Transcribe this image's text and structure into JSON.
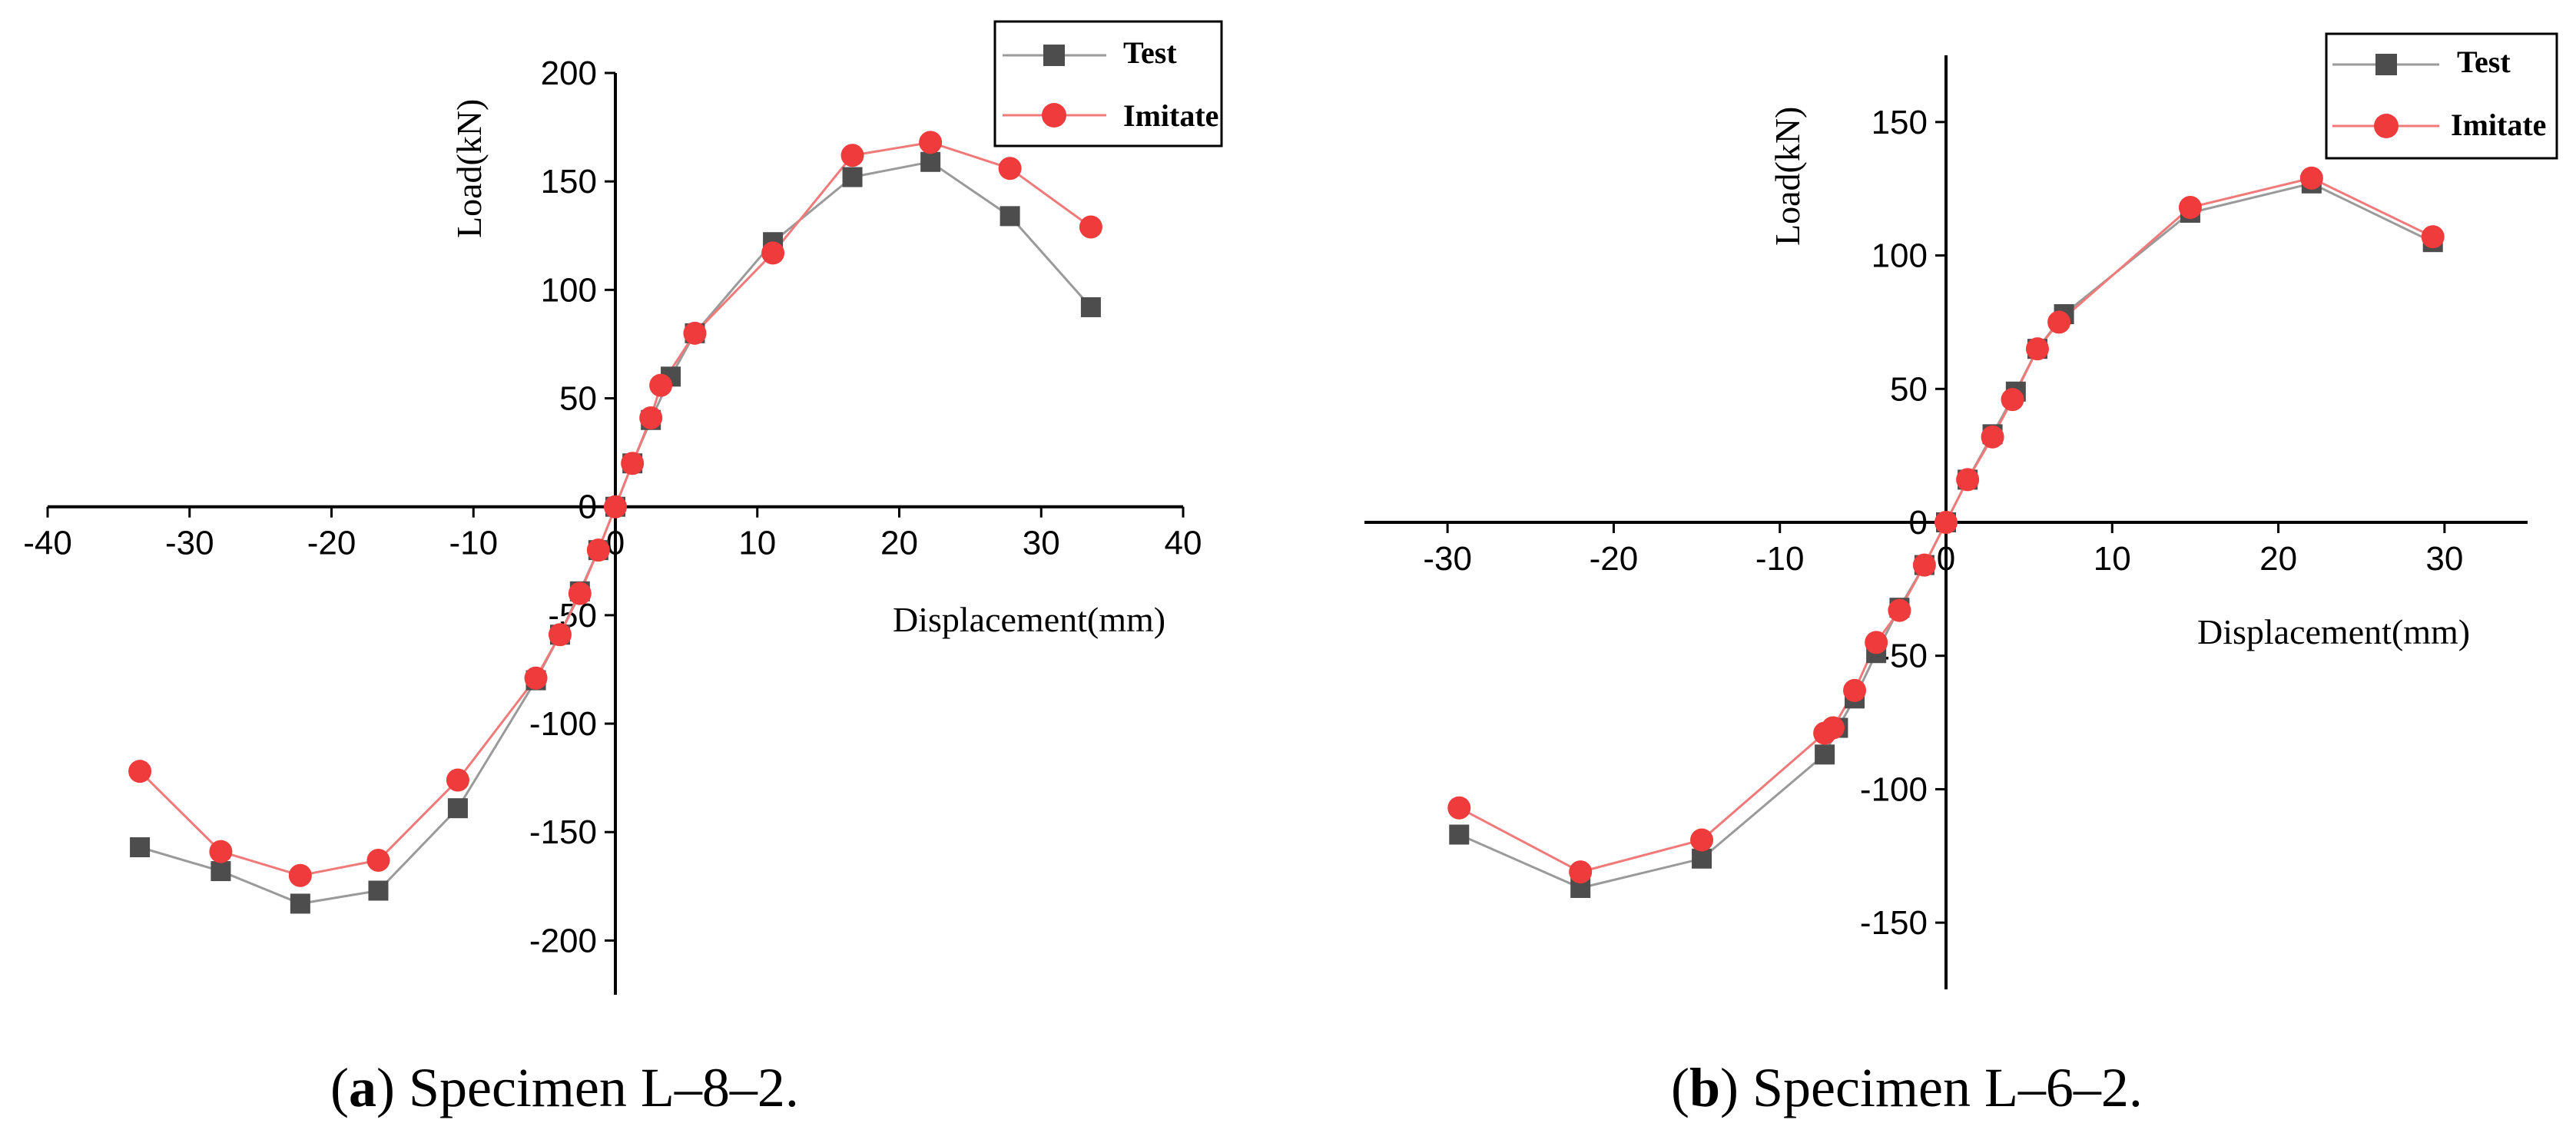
{
  "chart_data": [
    {
      "type": "line",
      "title": "",
      "xlabel": "Displacement(mm)",
      "ylabel": "Load(kN)",
      "xlim": [
        -40,
        40
      ],
      "ylim": [
        -225,
        200
      ],
      "xticks": [
        -40,
        -30,
        -20,
        -10,
        0,
        10,
        20,
        30,
        40
      ],
      "yticks": [
        -200,
        -150,
        -100,
        -50,
        0,
        50,
        100,
        150,
        200
      ],
      "legend": "top-right",
      "caption_label": "a",
      "caption_text": " Specimen L–8–2.",
      "series": [
        {
          "name": "Test",
          "color": "#4d4d4d",
          "line_color": "#9a9a9a",
          "marker": "square",
          "points": [
            [
              -33.5,
              -157
            ],
            [
              -27.8,
              -168
            ],
            [
              -22.2,
              -183
            ],
            [
              -16.7,
              -177
            ],
            [
              -11.1,
              -139
            ],
            [
              -5.6,
              -80
            ],
            [
              -3.9,
              -59
            ],
            [
              -2.5,
              -39
            ],
            [
              -1.2,
              -20
            ],
            [
              0,
              0
            ],
            [
              1.2,
              20
            ],
            [
              2.5,
              40
            ],
            [
              3.9,
              60
            ],
            [
              5.6,
              80
            ],
            [
              11.1,
              122
            ],
            [
              16.7,
              152
            ],
            [
              22.2,
              159
            ],
            [
              27.8,
              134
            ],
            [
              33.5,
              92
            ]
          ]
        },
        {
          "name": "Imitate",
          "color": "#ef3b3b",
          "line_color": "#f07a7a",
          "marker": "circle",
          "points": [
            [
              -33.5,
              -122
            ],
            [
              -27.8,
              -159
            ],
            [
              -22.2,
              -170
            ],
            [
              -16.7,
              -163
            ],
            [
              -11.1,
              -126
            ],
            [
              -5.6,
              -79
            ],
            [
              -3.9,
              -59
            ],
            [
              -2.5,
              -40
            ],
            [
              -1.2,
              -20
            ],
            [
              0,
              0
            ],
            [
              1.2,
              20
            ],
            [
              2.5,
              41
            ],
            [
              3.2,
              56
            ],
            [
              5.6,
              80
            ],
            [
              11.1,
              117
            ],
            [
              16.7,
              162
            ],
            [
              22.2,
              168
            ],
            [
              27.8,
              156
            ],
            [
              33.5,
              129
            ]
          ]
        }
      ]
    },
    {
      "type": "line",
      "title": "",
      "xlabel": "Displacement(mm)",
      "ylabel": "Load(kN)",
      "xlim": [
        -35,
        35
      ],
      "ylim": [
        -175,
        175
      ],
      "xticks": [
        -30,
        -20,
        -10,
        0,
        10,
        20,
        30
      ],
      "yticks": [
        -150,
        -100,
        -50,
        0,
        50,
        100,
        150
      ],
      "legend": "top-right",
      "caption_label": "b",
      "caption_text": " Specimen L–6–2.",
      "series": [
        {
          "name": "Test",
          "color": "#4d4d4d",
          "line_color": "#9a9a9a",
          "marker": "square",
          "points": [
            [
              -29.3,
              -117
            ],
            [
              -22,
              -137
            ],
            [
              -14.7,
              -126
            ],
            [
              -7.3,
              -87
            ],
            [
              -6.5,
              -77
            ],
            [
              -5.5,
              -66
            ],
            [
              -4.2,
              -49
            ],
            [
              -2.8,
              -32
            ],
            [
              -1.3,
              -16
            ],
            [
              0,
              0
            ],
            [
              1.3,
              16
            ],
            [
              2.8,
              33
            ],
            [
              4.2,
              49
            ],
            [
              5.5,
              65
            ],
            [
              7.1,
              78
            ],
            [
              14.7,
              116
            ],
            [
              22,
              127
            ],
            [
              29.3,
              105
            ]
          ]
        },
        {
          "name": "Imitate",
          "color": "#ef3b3b",
          "line_color": "#f07a7a",
          "marker": "circle",
          "points": [
            [
              -29.3,
              -107
            ],
            [
              -22,
              -131
            ],
            [
              -14.7,
              -119
            ],
            [
              -7.3,
              -79
            ],
            [
              -6.8,
              -77
            ],
            [
              -5.5,
              -63
            ],
            [
              -4.2,
              -45
            ],
            [
              -2.8,
              -33
            ],
            [
              -1.3,
              -16
            ],
            [
              0,
              0
            ],
            [
              1.3,
              16
            ],
            [
              2.8,
              32
            ],
            [
              4,
              46
            ],
            [
              5.5,
              65
            ],
            [
              6.8,
              75
            ],
            [
              14.7,
              118
            ],
            [
              22,
              129
            ],
            [
              29.3,
              107
            ]
          ]
        }
      ]
    }
  ]
}
